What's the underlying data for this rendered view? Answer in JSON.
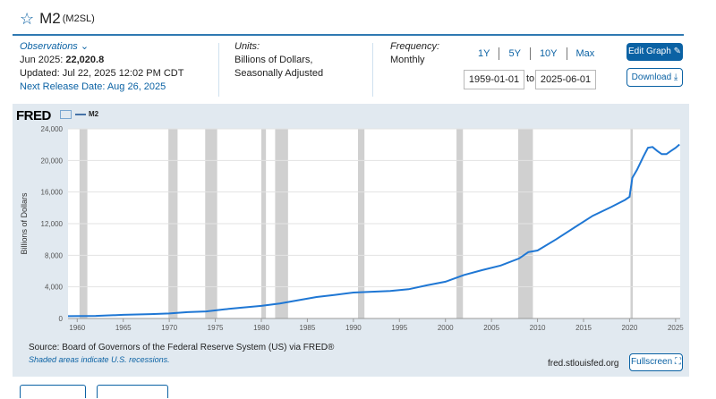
{
  "header": {
    "title": "M2",
    "code": "(M2SL)",
    "icon": "star-outline"
  },
  "observations": {
    "label": "Observations",
    "latest_date": "Jun 2025:",
    "latest_value": "22,020.8",
    "updated": "Updated: Jul 22, 2025 12:02 PM CDT",
    "next_release": "Next Release Date: Aug 26, 2025"
  },
  "units": {
    "label": "Units:",
    "line1": "Billions of Dollars,",
    "line2": "Seasonally Adjusted"
  },
  "frequency": {
    "label": "Frequency:",
    "value": "Monthly"
  },
  "range_buttons": [
    "1Y",
    "5Y",
    "10Y",
    "Max"
  ],
  "dates": {
    "start": "1959-01-01",
    "to": "to",
    "end": "2025-06-01"
  },
  "buttons": {
    "edit": "Edit Graph",
    "download": "Download",
    "fullscreen": "Fullscreen"
  },
  "logo": "FRED",
  "source": "Source: Board of Governors of the Federal Reserve System (US) via FRED®",
  "shaded_note": "Shaded areas indicate U.S. recessions.",
  "site": "fred.stlouisfed.org",
  "colors": {
    "accent": "#0b62a4",
    "series": "#1f77d4",
    "plot_bg": "#e1e9f0",
    "recession": "#c8c8c8"
  },
  "chart_data": {
    "type": "line",
    "ylabel": "Billions of Dollars",
    "ylim": [
      0,
      24000
    ],
    "yticks": [
      0,
      4000,
      8000,
      12000,
      16000,
      20000,
      24000
    ],
    "ytick_labels": [
      "0",
      "4,000",
      "8,000",
      "12,000",
      "16,000",
      "20,000",
      "24,000"
    ],
    "xlim": [
      1959.0,
      2025.5
    ],
    "xticks": [
      1960,
      1965,
      1970,
      1975,
      1980,
      1985,
      1990,
      1995,
      2000,
      2005,
      2010,
      2015,
      2020,
      2025
    ],
    "grid": "horizontal",
    "legend": "top-left",
    "recessions": [
      [
        1960.25,
        1961.1
      ],
      [
        1969.9,
        1970.9
      ],
      [
        1973.9,
        1975.2
      ],
      [
        1980.0,
        1980.5
      ],
      [
        1981.5,
        1982.9
      ],
      [
        1990.5,
        1991.2
      ],
      [
        2001.2,
        2001.9
      ],
      [
        2007.9,
        2009.5
      ],
      [
        2020.1,
        2020.35
      ]
    ],
    "series": [
      {
        "name": "M2",
        "x": [
          1959.0,
          1962,
          1965,
          1968,
          1970,
          1972,
          1974,
          1976,
          1978,
          1980,
          1982,
          1984,
          1986,
          1988,
          1990,
          1992,
          1994,
          1996,
          1998,
          2000,
          2002,
          2004,
          2006,
          2008,
          2009,
          2010,
          2012,
          2014,
          2016,
          2018,
          2019.5,
          2020.0,
          2020.3,
          2020.8,
          2021.5,
          2022.0,
          2022.5,
          2023.0,
          2023.5,
          2024.0,
          2024.5,
          2025.0,
          2025.42
        ],
        "y": [
          290,
          330,
          460,
          560,
          630,
          800,
          890,
          1170,
          1380,
          1600,
          1900,
          2310,
          2720,
          2990,
          3280,
          3380,
          3480,
          3700,
          4200,
          4650,
          5500,
          6120,
          6700,
          7600,
          8400,
          8600,
          10000,
          11500,
          13000,
          14100,
          15000,
          15400,
          17800,
          18800,
          20500,
          21600,
          21700,
          21200,
          20800,
          20800,
          21200,
          21600,
          22020
        ]
      }
    ]
  }
}
